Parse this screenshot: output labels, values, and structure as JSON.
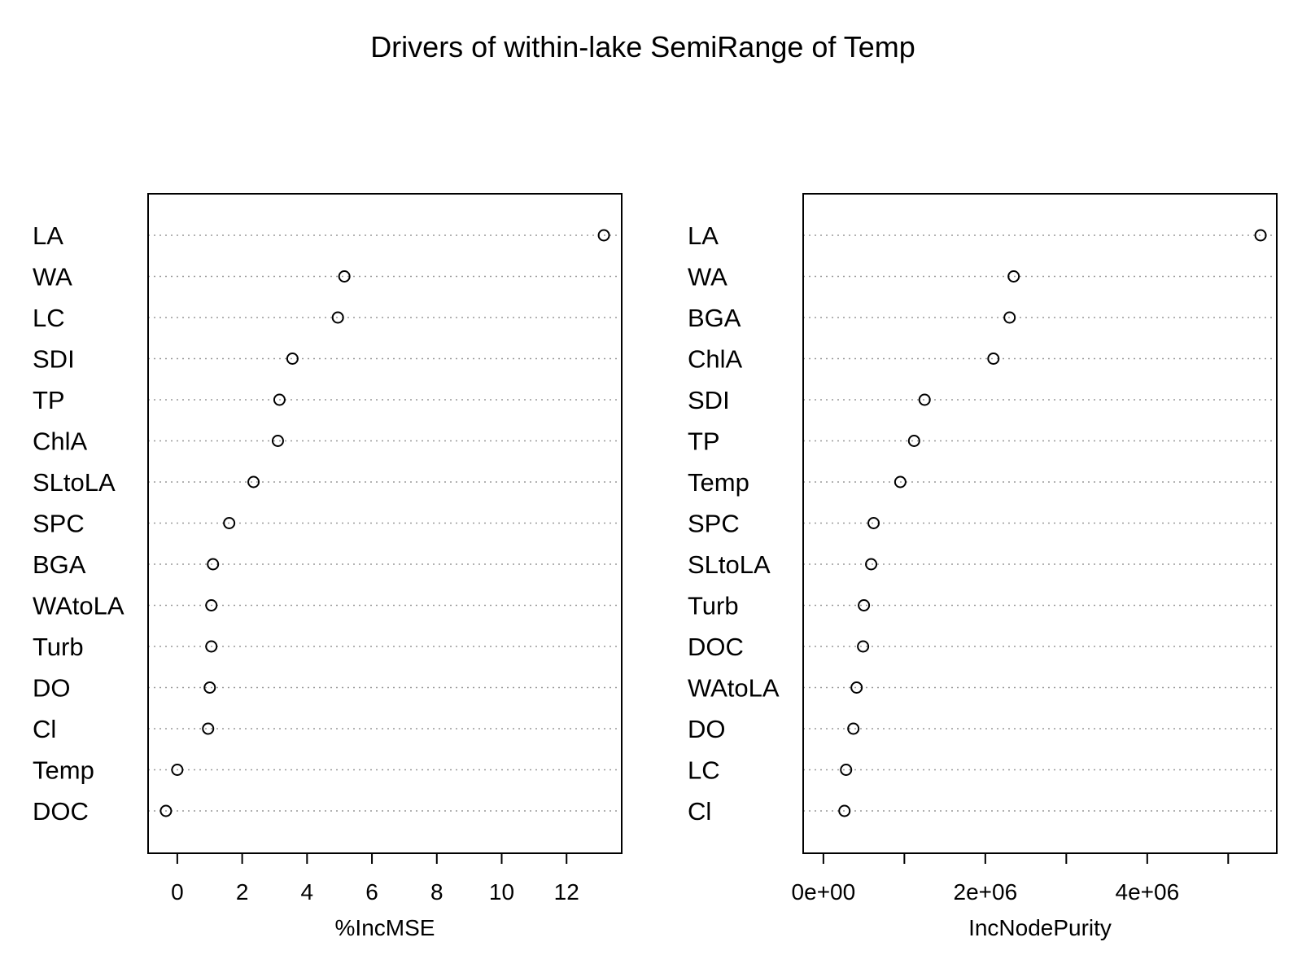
{
  "title": "Drivers of within-lake SemiRange of Temp",
  "chart_data": [
    {
      "type": "scatter",
      "subtype": "dotchart",
      "xlabel": "%IncMSE",
      "ylabel": "",
      "xlim": [
        -0.9,
        13.7
      ],
      "x_ticks": [
        0,
        2,
        4,
        6,
        8,
        10,
        12
      ],
      "x_tick_labels": [
        "0",
        "2",
        "4",
        "6",
        "8",
        "10",
        "12"
      ],
      "grid": "dotted horizontal guide lines",
      "categories": [
        "LA",
        "WA",
        "LC",
        "SDI",
        "TP",
        "ChlA",
        "SLtoLA",
        "SPC",
        "BGA",
        "WAtoLA",
        "Turb",
        "DO",
        "Cl",
        "Temp",
        "DOC"
      ],
      "values": [
        13.15,
        5.15,
        4.95,
        3.55,
        3.15,
        3.1,
        2.35,
        1.6,
        1.1,
        1.05,
        1.05,
        1.0,
        0.95,
        0.0,
        -0.35
      ]
    },
    {
      "type": "scatter",
      "subtype": "dotchart",
      "xlabel": "IncNodePurity",
      "ylabel": "",
      "xlim": [
        -250000,
        5600000
      ],
      "x_ticks": [
        0,
        1000000,
        2000000,
        3000000,
        4000000,
        5000000
      ],
      "x_tick_labels": [
        "0e+00",
        "",
        "2e+06",
        "",
        "4e+06",
        ""
      ],
      "grid": "dotted horizontal guide lines",
      "categories": [
        "LA",
        "WA",
        "BGA",
        "ChlA",
        "SDI",
        "TP",
        "Temp",
        "SPC",
        "SLtoLA",
        "Turb",
        "DOC",
        "WAtoLA",
        "DO",
        "LC",
        "Cl"
      ],
      "values": [
        5400000,
        2350000,
        2300000,
        2100000,
        1250000,
        1120000,
        950000,
        620000,
        590000,
        500000,
        490000,
        410000,
        370000,
        280000,
        260000
      ]
    }
  ]
}
